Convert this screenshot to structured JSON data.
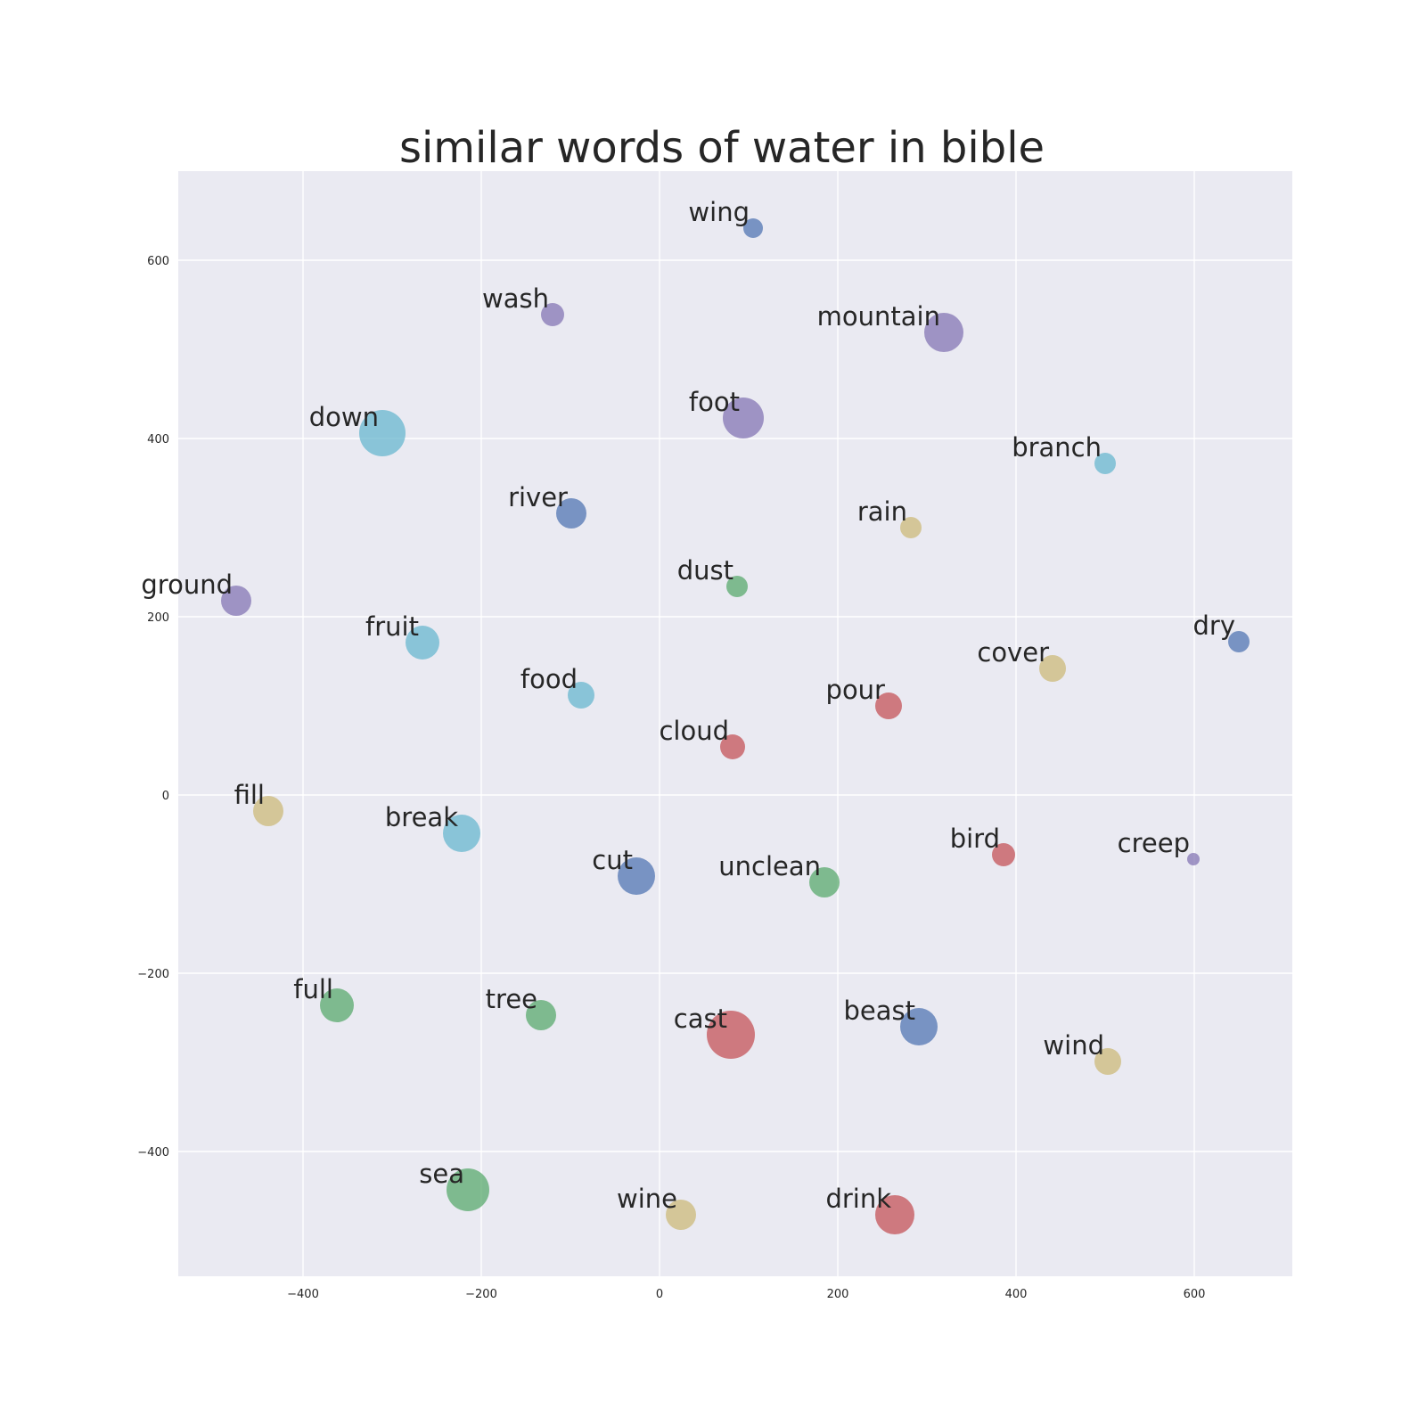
{
  "chart_data": {
    "type": "scatter",
    "title": "similar words of water in bible",
    "xlabel": "",
    "ylabel": "",
    "xlim": [
      -540,
      710
    ],
    "ylim": [
      -540,
      700
    ],
    "x_ticks": [
      -400,
      -200,
      0,
      200,
      400,
      600
    ],
    "y_ticks": [
      -400,
      -200,
      0,
      200,
      400,
      600
    ],
    "x_tick_labels": [
      "−400",
      "−200",
      "0",
      "200",
      "400",
      "600"
    ],
    "y_tick_labels": [
      "−400",
      "−200",
      "0",
      "200",
      "400",
      "600"
    ],
    "grid": true,
    "background": "#eaeaf2",
    "palette": {
      "blue": "#4c72b0",
      "green": "#55a868",
      "red": "#c44e52",
      "purple": "#8172b2",
      "yellow": "#ccb974",
      "cyan": "#64b5cd"
    },
    "points": [
      {
        "label": "wing",
        "x": 105,
        "y": 636,
        "size": 11,
        "color": "blue"
      },
      {
        "label": "wash",
        "x": -120,
        "y": 539,
        "size": 13,
        "color": "purple"
      },
      {
        "label": "mountain",
        "x": 319,
        "y": 519,
        "size": 22,
        "color": "purple"
      },
      {
        "label": "foot",
        "x": 94,
        "y": 423,
        "size": 23,
        "color": "purple"
      },
      {
        "label": "down",
        "x": -311,
        "y": 406,
        "size": 26,
        "color": "cyan"
      },
      {
        "label": "branch",
        "x": 500,
        "y": 372,
        "size": 12,
        "color": "cyan"
      },
      {
        "label": "river",
        "x": -99,
        "y": 316,
        "size": 17,
        "color": "blue"
      },
      {
        "label": "rain",
        "x": 282,
        "y": 300,
        "size": 12,
        "color": "yellow"
      },
      {
        "label": "dust",
        "x": 87,
        "y": 234,
        "size": 12,
        "color": "green"
      },
      {
        "label": "ground",
        "x": -475,
        "y": 218,
        "size": 17,
        "color": "purple"
      },
      {
        "label": "fruit",
        "x": -266,
        "y": 171,
        "size": 19,
        "color": "cyan"
      },
      {
        "label": "dry",
        "x": 650,
        "y": 172,
        "size": 12,
        "color": "blue"
      },
      {
        "label": "cover",
        "x": 441,
        "y": 142,
        "size": 15,
        "color": "yellow"
      },
      {
        "label": "food",
        "x": -88,
        "y": 112,
        "size": 15,
        "color": "cyan"
      },
      {
        "label": "pour",
        "x": 257,
        "y": 100,
        "size": 15,
        "color": "red"
      },
      {
        "label": "cloud",
        "x": 82,
        "y": 54,
        "size": 14,
        "color": "red"
      },
      {
        "label": "fill",
        "x": -439,
        "y": -18,
        "size": 17,
        "color": "yellow"
      },
      {
        "label": "break",
        "x": -222,
        "y": -43,
        "size": 21,
        "color": "cyan"
      },
      {
        "label": "bird",
        "x": 386,
        "y": -67,
        "size": 13,
        "color": "red"
      },
      {
        "label": "creep",
        "x": 599,
        "y": -72,
        "size": 7,
        "color": "purple"
      },
      {
        "label": "cut",
        "x": -26,
        "y": -91,
        "size": 21,
        "color": "blue"
      },
      {
        "label": "unclean",
        "x": 185,
        "y": -98,
        "size": 17,
        "color": "green"
      },
      {
        "label": "full",
        "x": -362,
        "y": -236,
        "size": 19,
        "color": "green"
      },
      {
        "label": "tree",
        "x": -133,
        "y": -247,
        "size": 17,
        "color": "green"
      },
      {
        "label": "cast",
        "x": 80,
        "y": -269,
        "size": 27,
        "color": "red"
      },
      {
        "label": "beast",
        "x": 291,
        "y": -260,
        "size": 21,
        "color": "blue"
      },
      {
        "label": "wind",
        "x": 503,
        "y": -299,
        "size": 15,
        "color": "yellow"
      },
      {
        "label": "sea",
        "x": -215,
        "y": -443,
        "size": 24,
        "color": "green"
      },
      {
        "label": "wine",
        "x": 24,
        "y": -471,
        "size": 17,
        "color": "yellow"
      },
      {
        "label": "drink",
        "x": 264,
        "y": -471,
        "size": 22,
        "color": "red"
      }
    ]
  }
}
